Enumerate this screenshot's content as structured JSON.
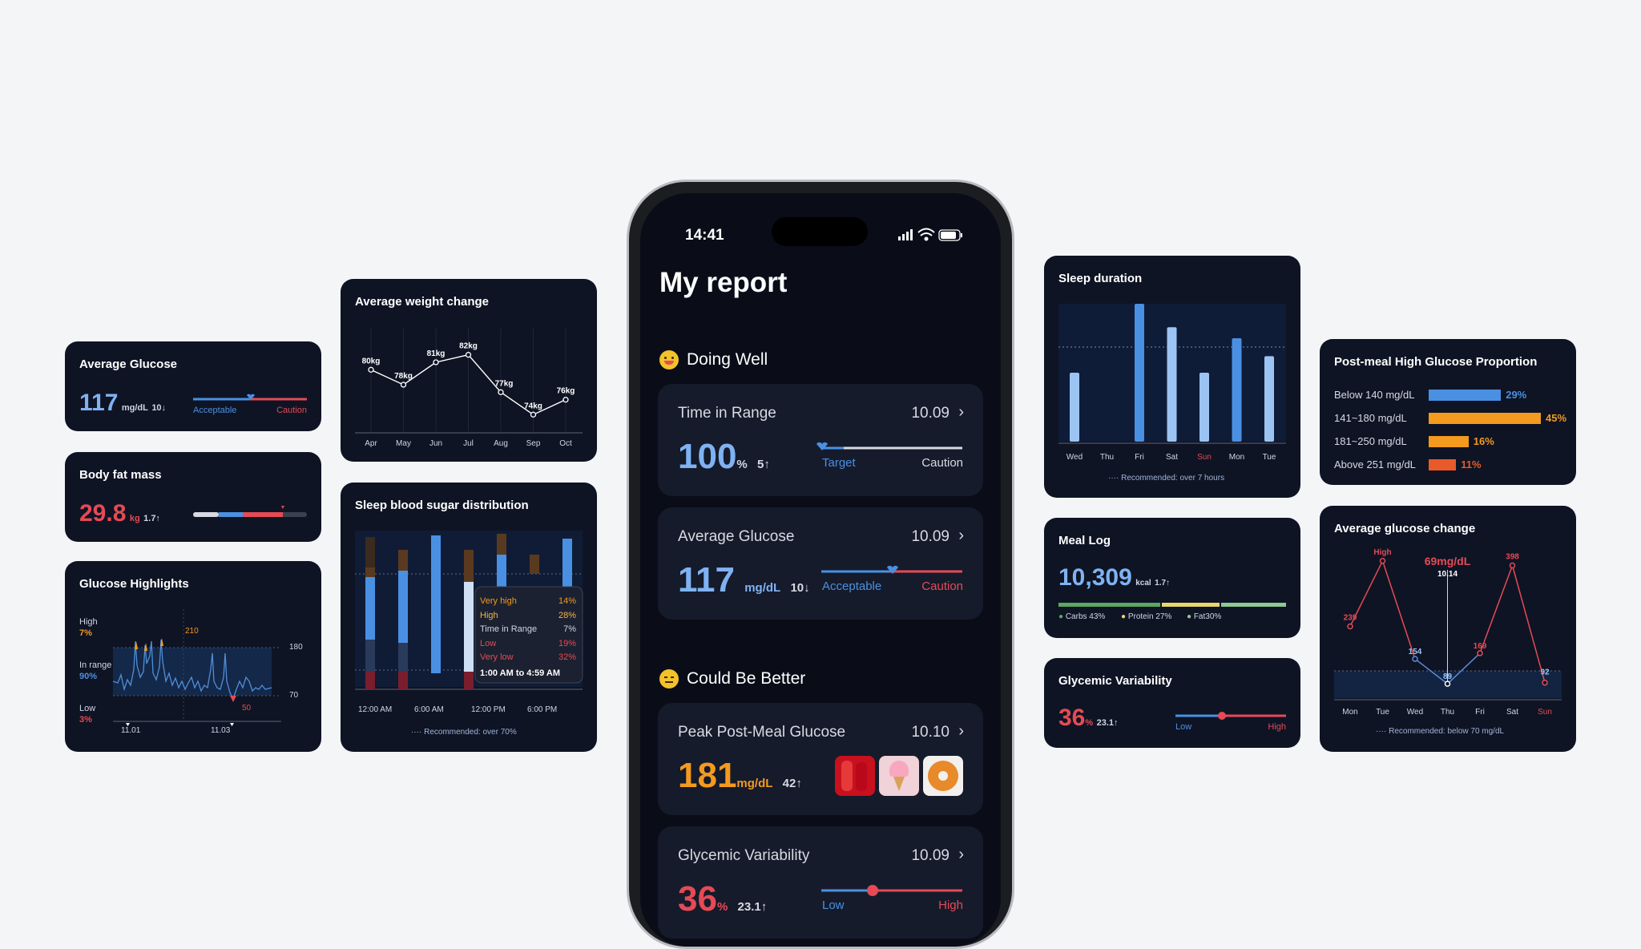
{
  "colors": {
    "blue": "#4a90e2",
    "red": "#e64a55",
    "orange": "#f39a1f",
    "bg": "#f4f5f7",
    "card": "#0e1424"
  },
  "avg_glucose_card": {
    "title": "Average Glucose",
    "value": "117",
    "unit": "mg/dL",
    "delta": "10↓",
    "left_label": "Acceptable",
    "right_label": "Caution"
  },
  "body_fat_card": {
    "title": "Body fat mass",
    "value": "29.8",
    "unit": "kg",
    "delta": "1.7↑"
  },
  "glucose_highlights": {
    "title": "Glucose Highlights",
    "high_label": "High",
    "high_pct": "7%",
    "inrange_label": "In range",
    "inrange_pct": "90%",
    "low_label": "Low",
    "low_pct": "3%",
    "peak_label": "210",
    "min_label": "50",
    "y_upper": "180",
    "y_lower": "70",
    "date1": "11.01",
    "date2": "11.03"
  },
  "weight_card": {
    "title": "Average weight change"
  },
  "chart_data": [
    {
      "type": "line",
      "title": "Average weight change",
      "categories": [
        "Apr",
        "May",
        "Jun",
        "Jul",
        "Aug",
        "Sep",
        "Oct"
      ],
      "values": [
        80,
        78,
        81,
        82,
        77,
        74,
        76
      ],
      "labels": [
        "80kg",
        "78kg",
        "81kg",
        "82kg",
        "77kg",
        "74kg",
        "76kg"
      ]
    },
    {
      "type": "bar",
      "title": "Sleep duration",
      "categories": [
        "Wed",
        "Thu",
        "Fri",
        "Sat",
        "Sun",
        "Mon",
        "Tue"
      ],
      "values": [
        5,
        0,
        10,
        8.3,
        5,
        7.5,
        6.2
      ],
      "highlight": "Sun",
      "note": "Recommended: over 7 hours"
    },
    {
      "type": "bar",
      "title": "Post-meal High Glucose Proportion",
      "categories": [
        "Below 140 mg/dL",
        "141~180 mg/dL",
        "181~250 mg/dL",
        "Above 251 mg/dL"
      ],
      "values": [
        29,
        45,
        16,
        11
      ]
    },
    {
      "type": "line",
      "title": "Average glucose change",
      "categories": [
        "Mon",
        "Tue",
        "Wed",
        "Thu",
        "Fri",
        "Sat",
        "Sun"
      ],
      "values": [
        239,
        null,
        154,
        89,
        169,
        398,
        92
      ],
      "peak_label": "High",
      "tooltip": "69mg/dL",
      "tooltip_date": "10.14",
      "note": "Recommended: below 70 mg/dL"
    },
    {
      "type": "bar",
      "title": "Sleep blood sugar distribution",
      "categories": [
        "12:00 AM",
        "6:00 AM",
        "12:00 PM",
        "6:00 PM"
      ],
      "note": "Recommended: over 70%"
    }
  ],
  "sleep_sugar": {
    "title": "Sleep blood sugar distribution",
    "tooltip": [
      {
        "label": "Very high",
        "value": "14%"
      },
      {
        "label": "High",
        "value": "28%"
      },
      {
        "label": "Time in Range",
        "value": "7%"
      },
      {
        "label": "Low",
        "value": "19%"
      },
      {
        "label": "Very low",
        "value": "32%"
      }
    ],
    "tooltip_time": "1:00 AM to 4:59 AM",
    "x_labels": [
      "12:00 AM",
      "6:00 AM",
      "12:00 PM",
      "6:00 PM"
    ],
    "note": "Recommended: over 70%"
  },
  "sleep_duration": {
    "title": "Sleep duration",
    "days": [
      "Wed",
      "Thu",
      "Fri",
      "Sat",
      "Sun",
      "Mon",
      "Tue"
    ],
    "note": "Recommended: over 7 hours"
  },
  "meal_log": {
    "title": "Meal Log",
    "value": "10,309",
    "unit": "kcal",
    "delta": "1.7↑",
    "carbs": "Carbs 43%",
    "protein": "Protein 27%",
    "fat": "Fat30%"
  },
  "glycemic_card": {
    "title": "Glycemic Variability",
    "value": "36",
    "unit": "%",
    "delta": "23.1↑",
    "low": "Low",
    "high": "High"
  },
  "post_meal": {
    "title": "Post-meal High Glucose Proportion",
    "rows": [
      {
        "label": "Below 140 mg/dL",
        "value": "29%"
      },
      {
        "label": "141~180 mg/dL",
        "value": "45%"
      },
      {
        "label": "181~250 mg/dL",
        "value": "16%"
      },
      {
        "label": "Above 251 mg/dL",
        "value": "11%"
      }
    ]
  },
  "avg_glucose_change": {
    "title": "Average glucose change",
    "high": "High",
    "tooltip": "69mg/dL",
    "date": "10.14",
    "points": [
      "239",
      "154",
      "89",
      "169",
      "398",
      "92"
    ],
    "days": [
      "Mon",
      "Tue",
      "Wed",
      "Thu",
      "Fri",
      "Sat",
      "Sun"
    ],
    "note": "Recommended: below 70 mg/dL"
  },
  "phone": {
    "time": "14:41",
    "title": "My report",
    "section_good": "Doing Well",
    "section_better": "Could Be Better",
    "tir": {
      "title": "Time in Range",
      "date": "10.09",
      "value": "100",
      "unit": "%",
      "delta": "5↑",
      "left": "Target",
      "right": "Caution"
    },
    "avg": {
      "title": "Average Glucose",
      "date": "10.09",
      "value": "117",
      "unit": "mg/dL",
      "delta": "10↓",
      "left": "Acceptable",
      "right": "Caution"
    },
    "peak": {
      "title": "Peak Post-Meal Glucose",
      "date": "10.10",
      "value": "181",
      "unit": "mg/dL",
      "delta": "42↑"
    },
    "gv": {
      "title": "Glycemic Variability",
      "date": "10.09",
      "value": "36",
      "unit": "%",
      "delta": "23.1↑",
      "left": "Low",
      "right": "High"
    }
  }
}
